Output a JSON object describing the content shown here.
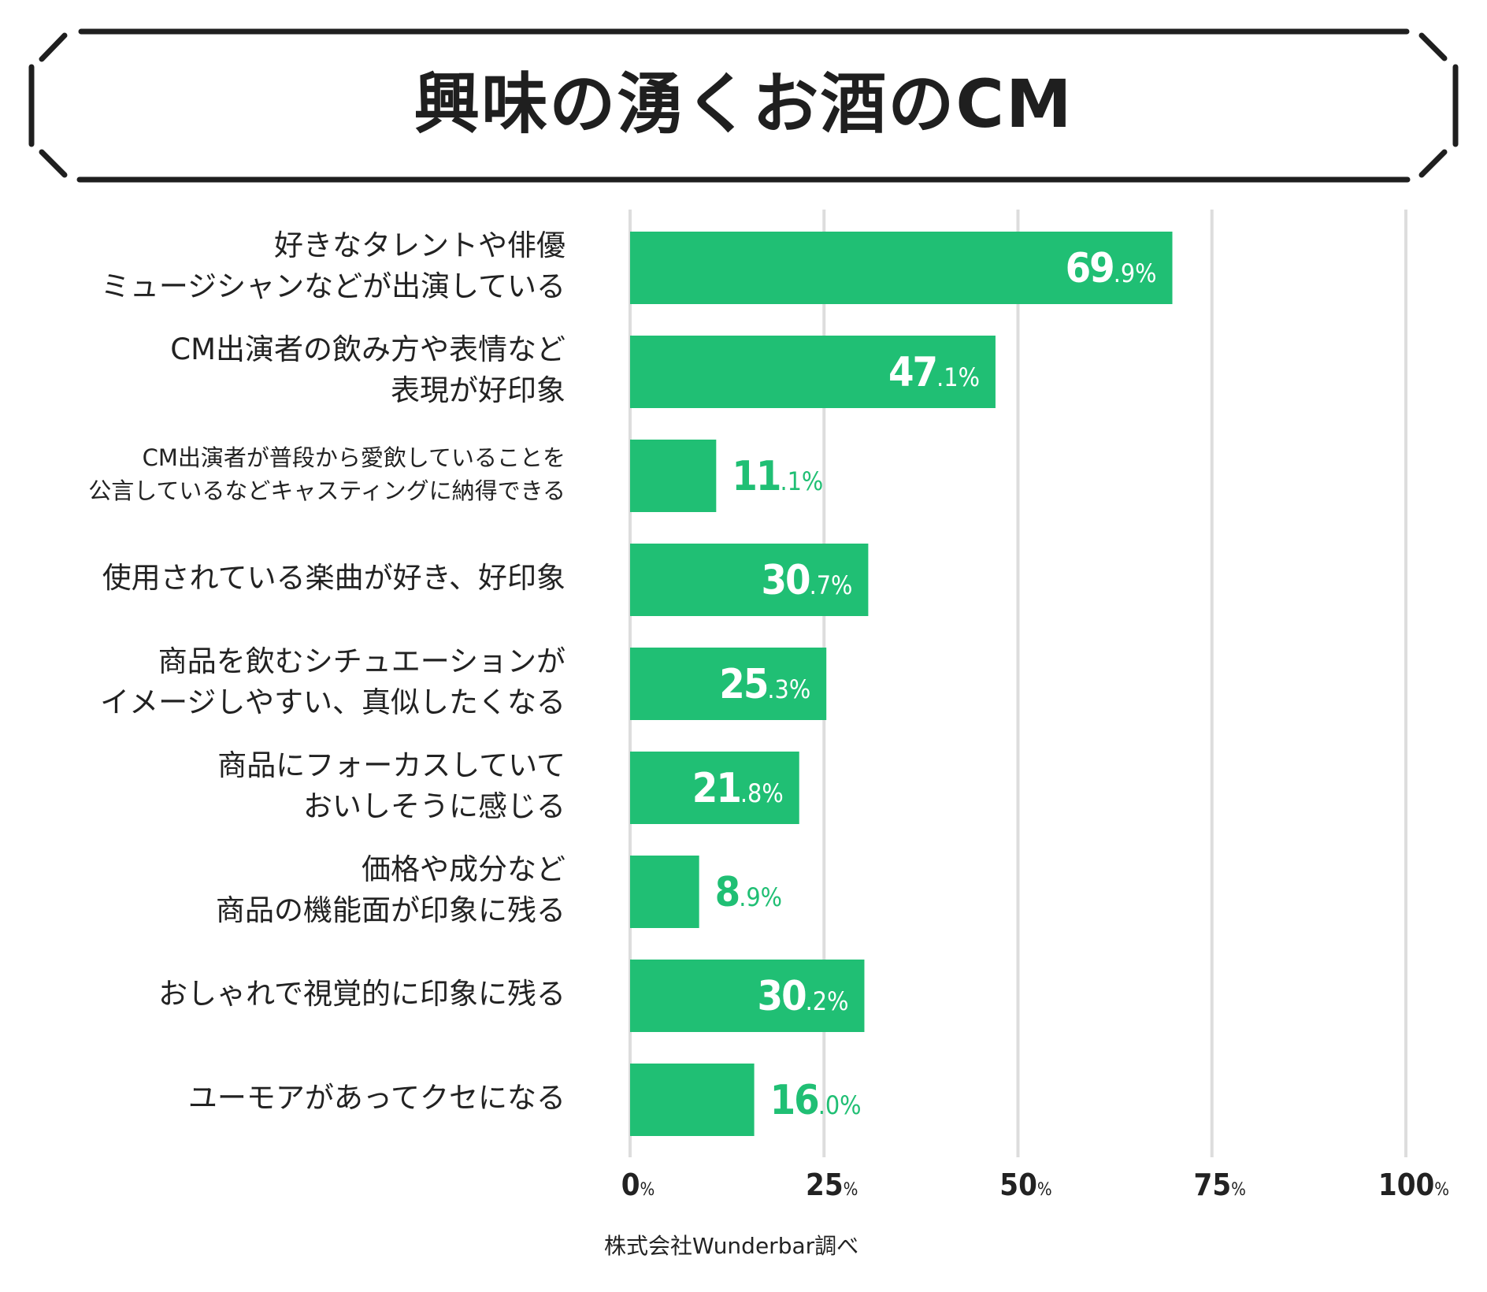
{
  "title": "興味の湧くお酒のCM",
  "source": "株式会社Wunderbar調べ",
  "colors": {
    "bar": "#20BF74",
    "gridline": "#DDDDDD",
    "frame": "#1F1F1F",
    "text": "#222222",
    "label_inside": "#FFFFFF",
    "label_outside": "#20BF74"
  },
  "chart_data": {
    "type": "bar",
    "orientation": "horizontal",
    "title": "興味の湧くお酒のCM",
    "xlabel": "",
    "ylabel": "",
    "xlim": [
      0,
      100
    ],
    "grid": true,
    "unit": "%",
    "categories": [
      [
        "好きなタレントや俳優",
        "ミュージシャンなどが出演している"
      ],
      [
        "CM出演者の飲み方や表情など",
        "表現が好印象"
      ],
      [
        "CM出演者が普段から愛飲していることを",
        "公言しているなどキャスティングに納得できる"
      ],
      [
        "使用されている楽曲が好き、好印象"
      ],
      [
        "商品を飲むシチュエーションが",
        "イメージしやすい、真似したくなる"
      ],
      [
        "商品にフォーカスしていて",
        "おいしそうに感じる"
      ],
      [
        "価格や成分など",
        "商品の機能面が印象に残る"
      ],
      [
        "おしゃれで視覚的に印象に残る"
      ],
      [
        "ユーモアがあってクセになる"
      ]
    ],
    "values": [
      69.9,
      47.1,
      11.1,
      30.7,
      25.3,
      21.8,
      8.9,
      30.2,
      16.0
    ],
    "value_labels": [
      {
        "int": "69",
        "dec": ".9%"
      },
      {
        "int": "47",
        "dec": ".1%"
      },
      {
        "int": "11",
        "dec": ".1%"
      },
      {
        "int": "30",
        "dec": ".7%"
      },
      {
        "int": "25",
        "dec": ".3%"
      },
      {
        "int": "21",
        "dec": ".8%"
      },
      {
        "int": "8",
        "dec": ".9%"
      },
      {
        "int": "30",
        "dec": ".2%"
      },
      {
        "int": "16",
        "dec": ".0%"
      }
    ],
    "small_label_rows": [
      2
    ],
    "x_ticks": [
      {
        "value": 0,
        "num": "0",
        "unit": "%"
      },
      {
        "value": 25,
        "num": "25",
        "unit": "%"
      },
      {
        "value": 50,
        "num": "50",
        "unit": "%"
      },
      {
        "value": 75,
        "num": "75",
        "unit": "%"
      },
      {
        "value": 100,
        "num": "100",
        "unit": "%"
      }
    ]
  }
}
